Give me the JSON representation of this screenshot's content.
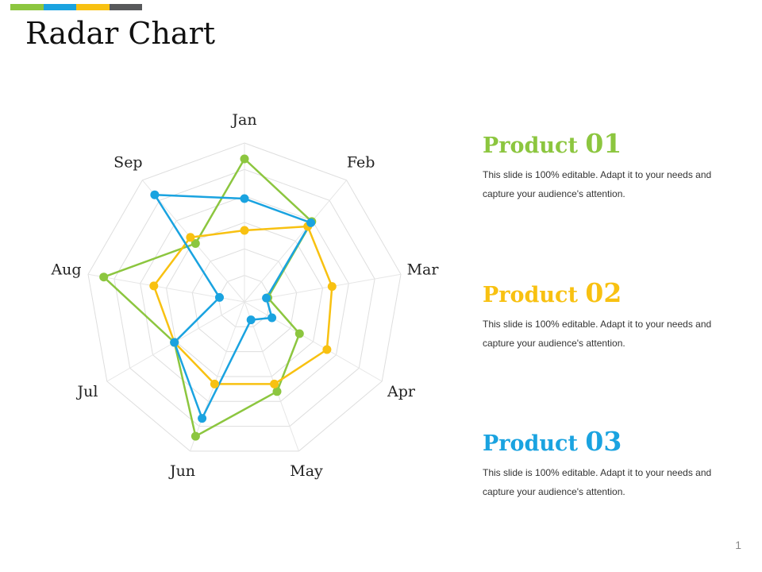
{
  "slide": {
    "title": "Radar Chart",
    "page_number": "1"
  },
  "colors": {
    "bar": [
      "#8cc63f",
      "#1aa3e0",
      "#f8c111",
      "#58595b"
    ]
  },
  "chart_data": {
    "type": "radar",
    "categories": [
      "Jan",
      "Feb",
      "Mar",
      "Apr",
      "May",
      "Jun",
      "Jul",
      "Aug",
      "Sep"
    ],
    "rmax": 10,
    "rings": 6,
    "series": [
      {
        "name": "Product 01",
        "color": "#8cc63f",
        "values": [
          9.0,
          6.6,
          1.5,
          4.0,
          6.0,
          9.0,
          5.1,
          9.0,
          4.8
        ]
      },
      {
        "name": "Product 02",
        "color": "#f8c111",
        "values": [
          4.5,
          6.2,
          5.6,
          6.0,
          5.5,
          5.5,
          5.1,
          5.8,
          5.3
        ]
      },
      {
        "name": "Product 03",
        "color": "#1aa3e0",
        "values": [
          6.5,
          6.5,
          1.4,
          2.0,
          1.2,
          7.8,
          5.1,
          1.6,
          8.8
        ]
      }
    ]
  },
  "legend": [
    {
      "label": "Product",
      "number": "01",
      "color": "#8cc63f",
      "description": "This slide is 100% editable. Adapt it to your needs and capture your audience's attention."
    },
    {
      "label": "Product",
      "number": "02",
      "color": "#f8c111",
      "description": "This slide is 100% editable. Adapt it to your needs and capture your audience's attention."
    },
    {
      "label": "Product",
      "number": "03",
      "color": "#1aa3e0",
      "description": "This slide is 100% editable. Adapt it to your needs and capture your audience's attention."
    }
  ]
}
